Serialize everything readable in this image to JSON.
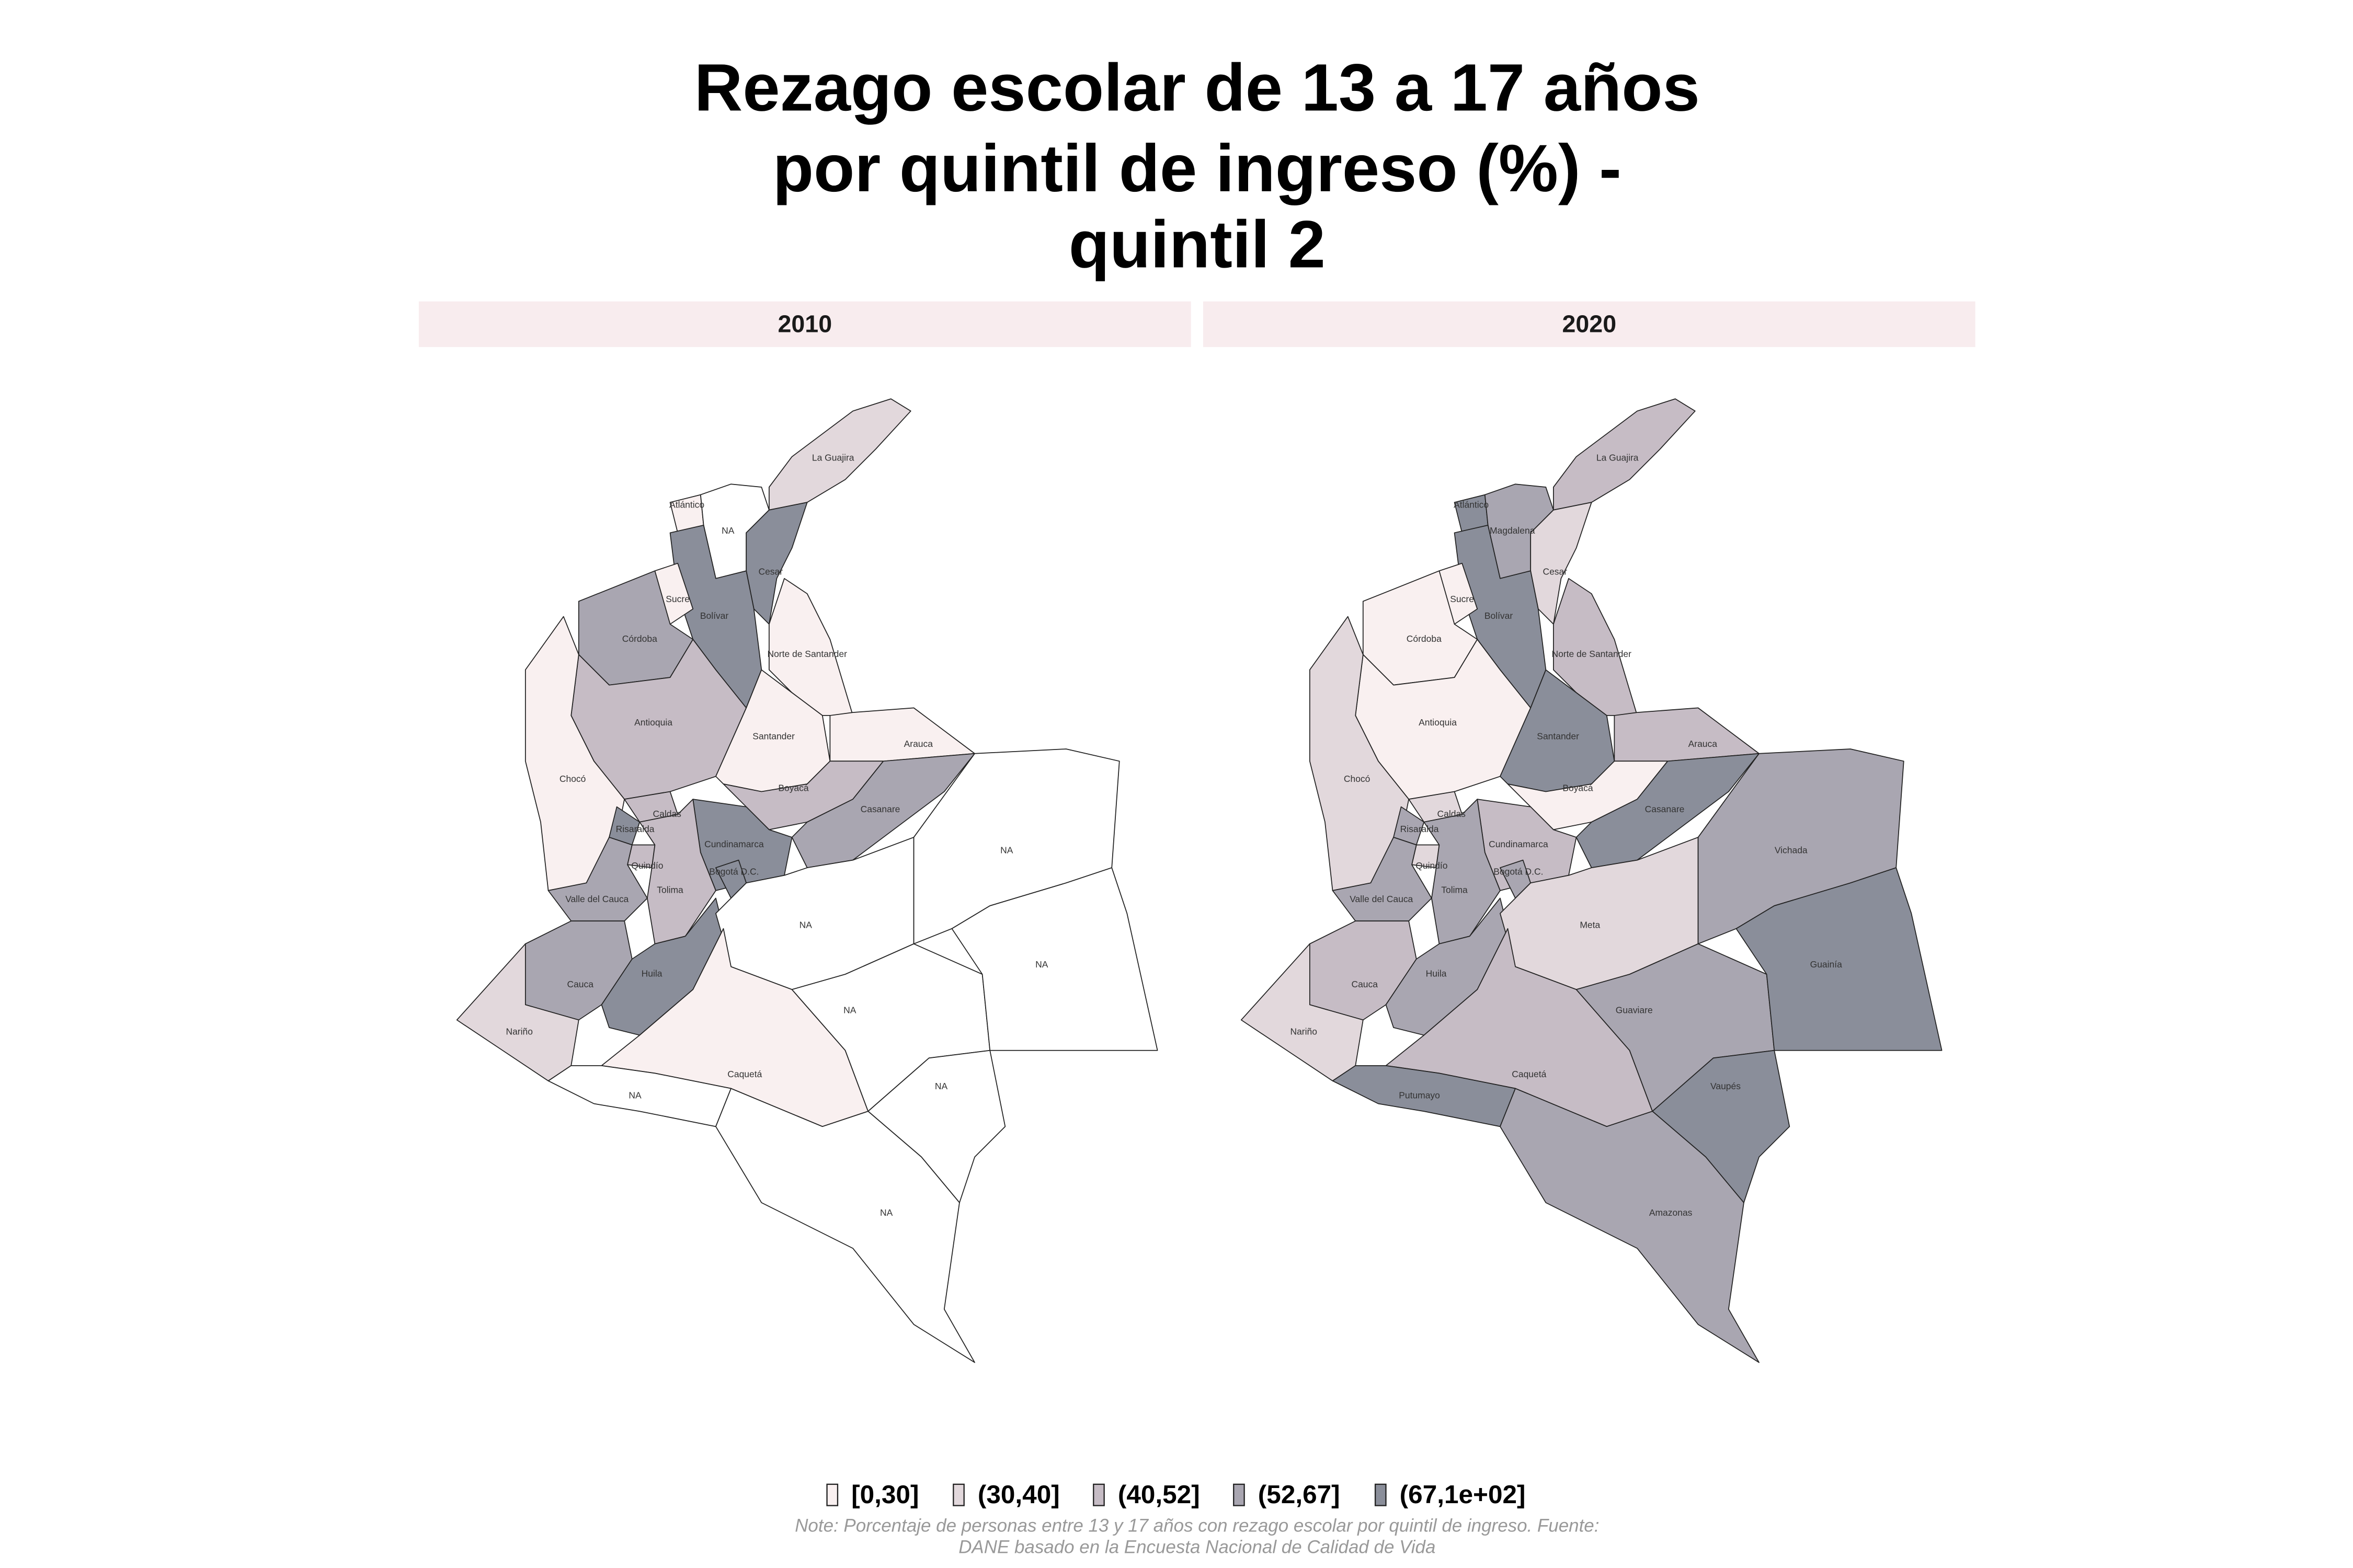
{
  "title": [
    "Rezago escolar de 13 a 17 años",
    "por quintil de ingreso (%) -",
    "quintil 2"
  ],
  "panels": [
    {
      "year": "2010",
      "regions": [
        {
          "label": "La Guajira",
          "class": "(30,40]"
        },
        {
          "label": "Atlántico",
          "class": "[0,30]"
        },
        {
          "label": "NA",
          "class": null
        },
        {
          "label": "Cesar",
          "class": "(67,1e+02]"
        },
        {
          "label": "Bolívar",
          "class": "(67,1e+02]"
        },
        {
          "label": "Sucre",
          "class": "[0,30]"
        },
        {
          "label": "Córdoba",
          "class": "(52,67]"
        },
        {
          "label": "Norte de Santander",
          "class": "[0,30]"
        },
        {
          "label": "Antioquia",
          "class": "(40,52]"
        },
        {
          "label": "Chocó",
          "class": "[0,30]"
        },
        {
          "label": "Santander",
          "class": "[0,30]"
        },
        {
          "label": "Arauca",
          "class": "[0,30]"
        },
        {
          "label": "Boyacá",
          "class": "(40,52]"
        },
        {
          "label": "Casanare",
          "class": "(52,67]"
        },
        {
          "label": "Caldas",
          "class": "(40,52]"
        },
        {
          "label": "Risaralda",
          "class": "(67,1e+02]"
        },
        {
          "label": "Quindío",
          "class": "(40,52]"
        },
        {
          "label": "Cundinamarca",
          "class": "(67,1e+02]"
        },
        {
          "label": "Bogotá D.C.",
          "class": "(67,1e+02]"
        },
        {
          "label": "Tolima",
          "class": "(40,52]"
        },
        {
          "label": "Valle del Cauca",
          "class": "(52,67]"
        },
        {
          "label": "Cauca",
          "class": "(52,67]"
        },
        {
          "label": "Nariño",
          "class": "(30,40]"
        },
        {
          "label": "Huila",
          "class": "(67,1e+02]"
        },
        {
          "label": "NA",
          "class": null
        },
        {
          "label": "Caquetá",
          "class": "[0,30]"
        },
        {
          "label": "NA",
          "class": null
        },
        {
          "label": "NA",
          "class": null
        },
        {
          "label": "NA",
          "class": null
        },
        {
          "label": "NA",
          "class": null
        },
        {
          "label": "NA",
          "class": null
        },
        {
          "label": "NA",
          "class": null
        }
      ]
    },
    {
      "year": "2020",
      "regions": [
        {
          "label": "La Guajira",
          "class": "(40,52]"
        },
        {
          "label": "Atlántico",
          "class": "(67,1e+02]"
        },
        {
          "label": "Magdalena",
          "class": "(52,67]"
        },
        {
          "label": "Cesar",
          "class": "(30,40]"
        },
        {
          "label": "Bolívar",
          "class": "(67,1e+02]"
        },
        {
          "label": "Sucre",
          "class": "[0,30]"
        },
        {
          "label": "Córdoba",
          "class": "[0,30]"
        },
        {
          "label": "Norte de Santander",
          "class": "(40,52]"
        },
        {
          "label": "Antioquia",
          "class": "[0,30]"
        },
        {
          "label": "Chocó",
          "class": "(30,40]"
        },
        {
          "label": "Santander",
          "class": "(67,1e+02]"
        },
        {
          "label": "Arauca",
          "class": "(40,52]"
        },
        {
          "label": "Boyacá",
          "class": "[0,30]"
        },
        {
          "label": "Casanare",
          "class": "(67,1e+02]"
        },
        {
          "label": "Caldas",
          "class": "(30,40]"
        },
        {
          "label": "Risaralda",
          "class": "(52,67]"
        },
        {
          "label": "Quindío",
          "class": "(30,40]"
        },
        {
          "label": "Cundinamarca",
          "class": "(40,52]"
        },
        {
          "label": "Bogotá D.C.",
          "class": "(52,67]"
        },
        {
          "label": "Tolima",
          "class": "(52,67]"
        },
        {
          "label": "Valle del Cauca",
          "class": "(52,67]"
        },
        {
          "label": "Cauca",
          "class": "(40,52]"
        },
        {
          "label": "Nariño",
          "class": "(30,40]"
        },
        {
          "label": "Huila",
          "class": "(52,67]"
        },
        {
          "label": "Meta",
          "class": "(30,40]"
        },
        {
          "label": "Caquetá",
          "class": "(40,52]"
        },
        {
          "label": "Putumayo",
          "class": "(67,1e+02]"
        },
        {
          "label": "Guaviare",
          "class": "(52,67]"
        },
        {
          "label": "Vichada",
          "class": "(52,67]"
        },
        {
          "label": "Guainía",
          "class": "(67,1e+02]"
        },
        {
          "label": "Vaupés",
          "class": "(67,1e+02]"
        },
        {
          "label": "Amazonas",
          "class": "(52,67]"
        }
      ]
    }
  ],
  "legend": {
    "items": [
      {
        "label": "[0,30]",
        "color": "#f9f0f0"
      },
      {
        "label": "(30,40]",
        "color": "#e2d8dc"
      },
      {
        "label": "(40,52]",
        "color": "#c6bcc5"
      },
      {
        "label": "(52,67]",
        "color": "#a9a6b1"
      },
      {
        "label": "(67,1e+02]",
        "color": "#8a8e9a"
      }
    ]
  },
  "note": [
    "Note: Porcentaje de personas entre 13 y 17 años con rezago escolar por quintil de ingreso. Fuente:",
    "DANE basado en la Encuesta Nacional de Calidad de Vida"
  ]
}
